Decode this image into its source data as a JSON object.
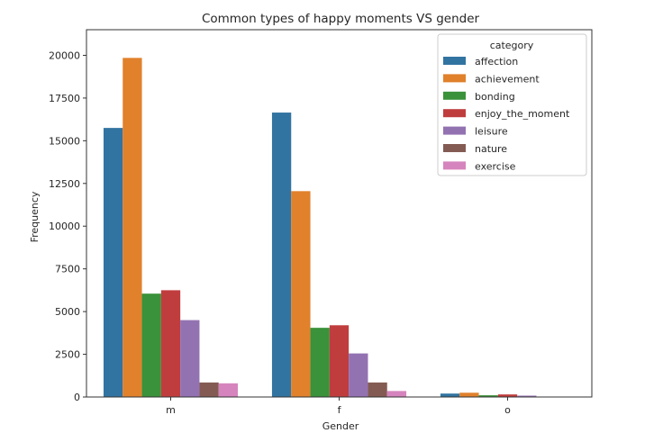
{
  "chart_data": {
    "type": "bar",
    "title": "Common types of happy moments VS gender",
    "xlabel": "Gender",
    "ylabel": "Frequency",
    "categories": [
      "m",
      "f",
      "o"
    ],
    "ylim": [
      0,
      21500
    ],
    "yticks": [
      0,
      2500,
      5000,
      7500,
      10000,
      12500,
      15000,
      17500,
      20000
    ],
    "ytick_labels": [
      "0",
      "2500",
      "5000",
      "7500",
      "10000",
      "12500",
      "15000",
      "17500",
      "20000"
    ],
    "grid": false,
    "legend": {
      "title": "category",
      "placement": "top-right"
    },
    "series": [
      {
        "name": "affection",
        "color": "#3274a1",
        "values": [
          15750,
          16650,
          200
        ]
      },
      {
        "name": "achievement",
        "color": "#e1812c",
        "values": [
          19850,
          12050,
          250
        ]
      },
      {
        "name": "bonding",
        "color": "#3a923a",
        "values": [
          6050,
          4050,
          100
        ]
      },
      {
        "name": "enjoy_the_moment",
        "color": "#c03d3e",
        "values": [
          6250,
          4200,
          150
        ]
      },
      {
        "name": "leisure",
        "color": "#9372b2",
        "values": [
          4500,
          2550,
          80
        ]
      },
      {
        "name": "nature",
        "color": "#845b53",
        "values": [
          850,
          850,
          20
        ]
      },
      {
        "name": "exercise",
        "color": "#d684bd",
        "values": [
          800,
          350,
          10
        ]
      }
    ]
  }
}
